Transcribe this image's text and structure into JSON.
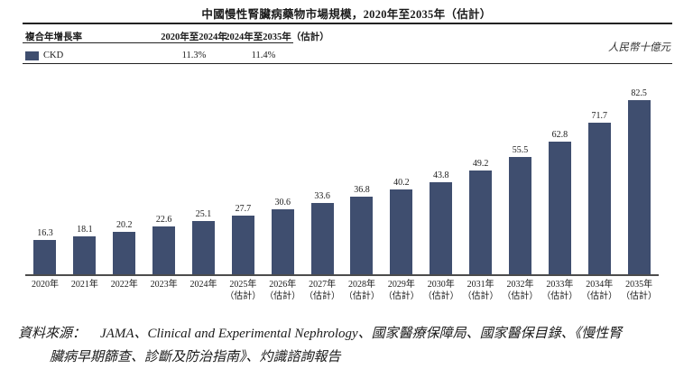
{
  "title": "中國慢性腎臟病藥物市場規模，2020年至2035年（估計）",
  "unit_label": "人民幣十億元",
  "cagr_table": {
    "row_header": "複合年增長率",
    "period1": "2020年至2024年",
    "period2": "2024年至2035年（估計）",
    "series": "CKD",
    "cagr1": "11.3%",
    "cagr2": "11.4%"
  },
  "chart_data": {
    "type": "bar",
    "title": "中國慢性腎臟病藥物市場規模，2020年至2035年（估計）",
    "ylabel": "人民幣十億元",
    "series_name": "CKD",
    "categories": [
      "2020年",
      "2021年",
      "2022年",
      "2023年",
      "2024年",
      "2025年（估計）",
      "2026年（估計）",
      "2027年（估計）",
      "2028年（估計）",
      "2029年（估計）",
      "2030年（估計）",
      "2031年（估計）",
      "2032年（估計）",
      "2033年（估計）",
      "2034年（估計）",
      "2035年（估計）"
    ],
    "values": [
      16.3,
      18.1,
      20.2,
      22.6,
      25.1,
      27.7,
      30.6,
      33.6,
      36.8,
      40.2,
      43.8,
      49.2,
      55.5,
      62.8,
      71.7,
      82.5
    ],
    "bar_color": "#3f4e6f",
    "ylim": [
      0,
      90
    ],
    "grid": false,
    "legend_position": "top-left",
    "estimate_note": "（估計）"
  },
  "source": {
    "label": "資料來源：",
    "line1": "JAMA、Clinical and Experimental Nephrology、國家醫療保障局、國家醫保目錄、《慢性腎",
    "line2": "臟病早期篩查、診斷及防治指南》、灼識諮詢報告"
  }
}
